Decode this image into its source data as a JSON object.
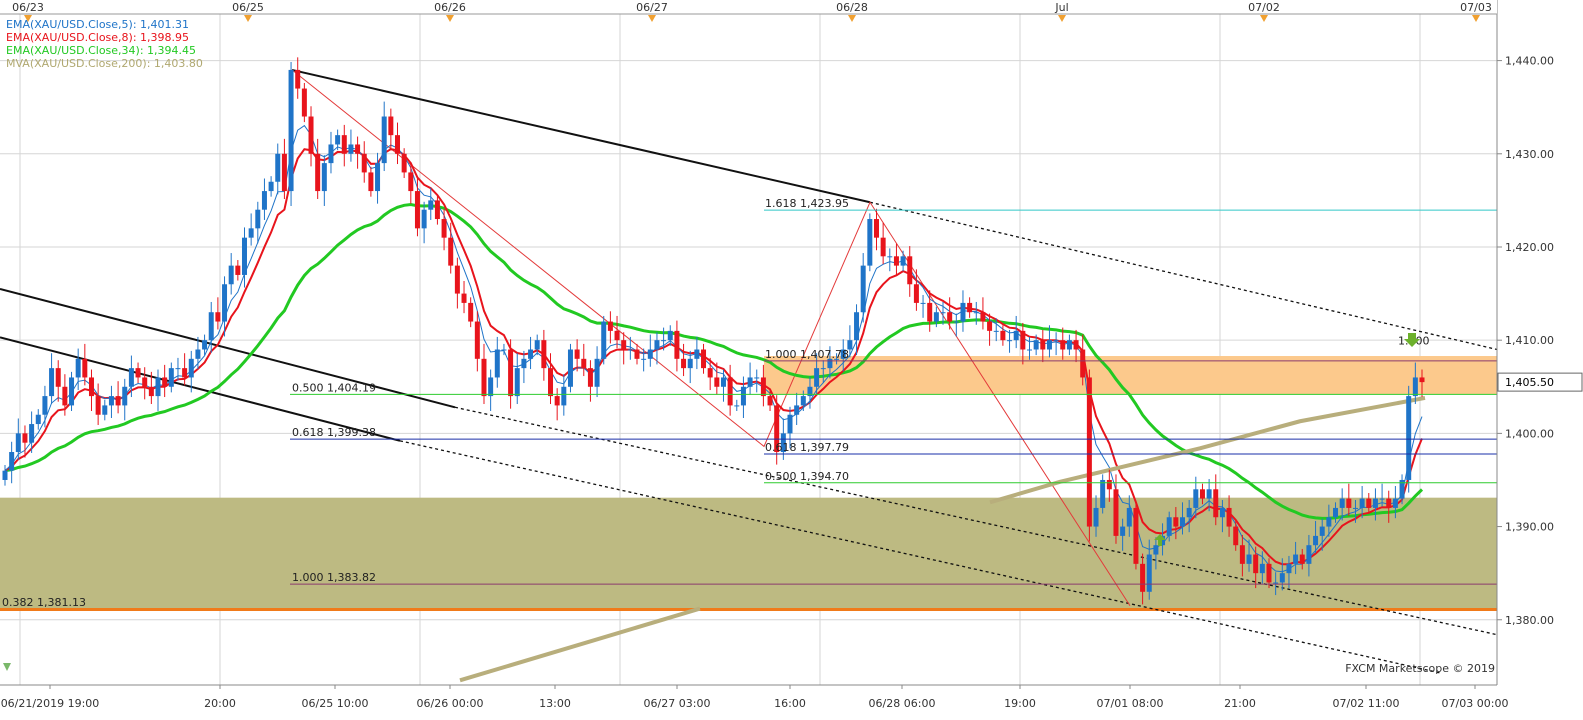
{
  "top_dates": [
    "06/23",
    "06/25",
    "06/26",
    "06/27",
    "06/28",
    "Jul",
    "07/02",
    "07/03"
  ],
  "bottom_times": [
    "06/21/2019 19:00",
    "20:00",
    "06/25 10:00",
    "06/26 00:00",
    "13:00",
    "06/27 03:00",
    "16:00",
    "06/28 06:00",
    "19:00",
    "07/01 08:00",
    "21:00",
    "07/02 11:00",
    "07/03 00:00"
  ],
  "y_ticks": [
    "1,440.00",
    "1,430.00",
    "1,420.00",
    "1,410.00",
    "1,400.00",
    "1,390.00",
    "1,380.00"
  ],
  "legend": [
    {
      "text": "EMA(XAU/USD.Close,5): 1,401.31",
      "color": "#1f74c8"
    },
    {
      "text": "EMA(XAU/USD.Close,8): 1,398.95",
      "color": "#e8141c"
    },
    {
      "text": "EMA(XAU/USD.Close,34): 1,394.45",
      "color": "#22c922"
    },
    {
      "text": "MVA(XAU/USD.Close,200): 1,403.80",
      "color": "#b0a870"
    }
  ],
  "price_box": "1,405.50",
  "watermark": "FXCM Marketscope © 2019",
  "fib_labels": [
    {
      "text": "1.618 1,423.95",
      "price": 1423.95
    },
    {
      "text": "1.000 1,407.78",
      "price": 1407.78
    },
    {
      "text": "0.500 1,404.19",
      "price": 1404.19
    },
    {
      "text": "0.618 1,399.38",
      "price": 1399.38
    },
    {
      "text": "0.618 1,397.79",
      "price": 1397.79
    },
    {
      "text": "0.500 1,394.70",
      "price": 1394.7
    },
    {
      "text": "1.000 1,383.82",
      "price": 1383.82
    },
    {
      "text": "0.382 1,381.13",
      "price": 1381.13
    },
    {
      "text": "1.600",
      "price": 1409.2
    }
  ],
  "colors": {
    "bull": "#1f74c8",
    "bear": "#e8141c",
    "ema5": "#1f74c8",
    "ema8": "#e8141c",
    "ema34": "#22c922",
    "mva200": "#b8ae7c",
    "olive_zone": "#bdba82",
    "orange_zone": "#fcc98c",
    "orange_line": "#f07a1a",
    "grid": "#d6d6d6",
    "fib_green": "#2ecc2e",
    "fib_blue": "#1a2fa8",
    "fib_purple": "#8a3a6e",
    "fib_cyan": "#30c8c8",
    "swing_red": "#e33a3a",
    "arrow": "#6cb02c"
  },
  "chart_data": {
    "type": "candlestick",
    "symbol": "XAU/USD",
    "ylim": [
      1373,
      1445
    ],
    "series": [
      {
        "name": "EMA(XAU/USD.Close,5)",
        "last": 1401.31
      },
      {
        "name": "EMA(XAU/USD.Close,8)",
        "last": 1398.95
      },
      {
        "name": "EMA(XAU/USD.Close,34)",
        "last": 1394.45
      },
      {
        "name": "MVA(XAU/USD.Close,200)",
        "last": 1403.8
      }
    ],
    "closes": [
      1396,
      1398,
      1400,
      1399,
      1401,
      1402,
      1404,
      1407,
      1405,
      1403,
      1406,
      1408,
      1406,
      1404,
      1402,
      1403,
      1404,
      1403,
      1405,
      1407,
      1406,
      1405,
      1404,
      1406,
      1405,
      1407,
      1407,
      1406,
      1408,
      1409,
      1410,
      1413,
      1412,
      1416,
      1418,
      1417,
      1421,
      1422,
      1424,
      1426,
      1427,
      1430,
      1426,
      1439,
      1437,
      1434,
      1430,
      1426,
      1429,
      1431,
      1432,
      1430,
      1431,
      1430,
      1428,
      1426,
      1429,
      1434,
      1432,
      1430,
      1428,
      1426,
      1422,
      1424,
      1425,
      1423,
      1421,
      1418,
      1415,
      1414,
      1412,
      1408,
      1404,
      1406,
      1409,
      1409,
      1404,
      1407,
      1408,
      1409,
      1410,
      1407,
      1404,
      1403,
      1405,
      1409,
      1408,
      1407,
      1405,
      1408,
      1412,
      1411,
      1410,
      1409,
      1409,
      1408,
      1408,
      1409,
      1410,
      1410,
      1411,
      1408,
      1407,
      1408,
      1409,
      1407,
      1406,
      1405,
      1406,
      1403,
      1403,
      1405,
      1406,
      1406,
      1404,
      1403,
      1398,
      1400,
      1402,
      1403,
      1404,
      1405,
      1407,
      1407,
      1408,
      1408,
      1409,
      1410,
      1413,
      1418,
      1423,
      1421,
      1419,
      1419,
      1418,
      1419,
      1416,
      1414,
      1414,
      1412,
      1413,
      1413,
      1412,
      1412,
      1414,
      1413,
      1413,
      1412,
      1411,
      1411,
      1410,
      1410,
      1411,
      1409,
      1409,
      1410,
      1409,
      1410,
      1410,
      1409,
      1410,
      1409,
      1406,
      1390,
      1392,
      1395,
      1394,
      1389,
      1390,
      1392,
      1386,
      1383,
      1387,
      1388,
      1389,
      1391,
      1390,
      1391,
      1392,
      1394,
      1393,
      1394,
      1391,
      1392,
      1390,
      1388,
      1386,
      1387,
      1385,
      1386,
      1384,
      1384,
      1385,
      1386,
      1387,
      1386,
      1388,
      1389,
      1390,
      1391,
      1392,
      1393,
      1392,
      1392,
      1393,
      1392,
      1393,
      1393,
      1392,
      1393,
      1395,
      1404,
      1406,
      1405.5
    ]
  }
}
